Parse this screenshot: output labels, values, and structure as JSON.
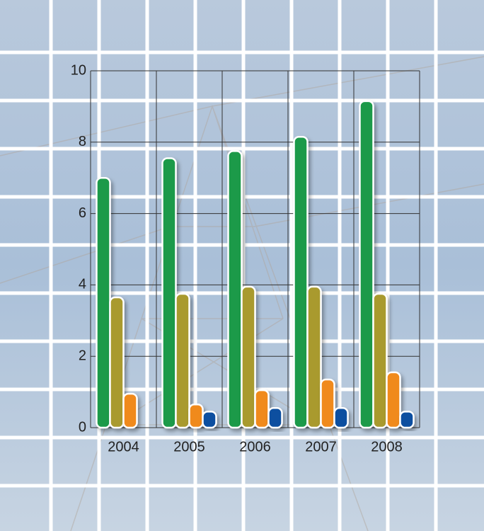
{
  "chart_data": {
    "type": "bar",
    "categories": [
      "2004",
      "2005",
      "2006",
      "2007",
      "2008"
    ],
    "series": [
      {
        "color": "#1a9a4a",
        "values": [
          7.0,
          7.55,
          7.75,
          8.15,
          9.15
        ]
      },
      {
        "color": "#a99a2e",
        "values": [
          3.65,
          3.75,
          3.95,
          3.95,
          3.75
        ]
      },
      {
        "color": "#f08a1c",
        "values": [
          0.95,
          0.65,
          1.05,
          1.35,
          1.55
        ]
      },
      {
        "color": "#0b4fa0",
        "values": [
          null,
          0.45,
          0.55,
          0.55,
          0.45
        ]
      }
    ],
    "ylim": [
      0,
      10
    ],
    "yticks": [
      0,
      2,
      4,
      6,
      8,
      10
    ],
    "grid": true
  }
}
